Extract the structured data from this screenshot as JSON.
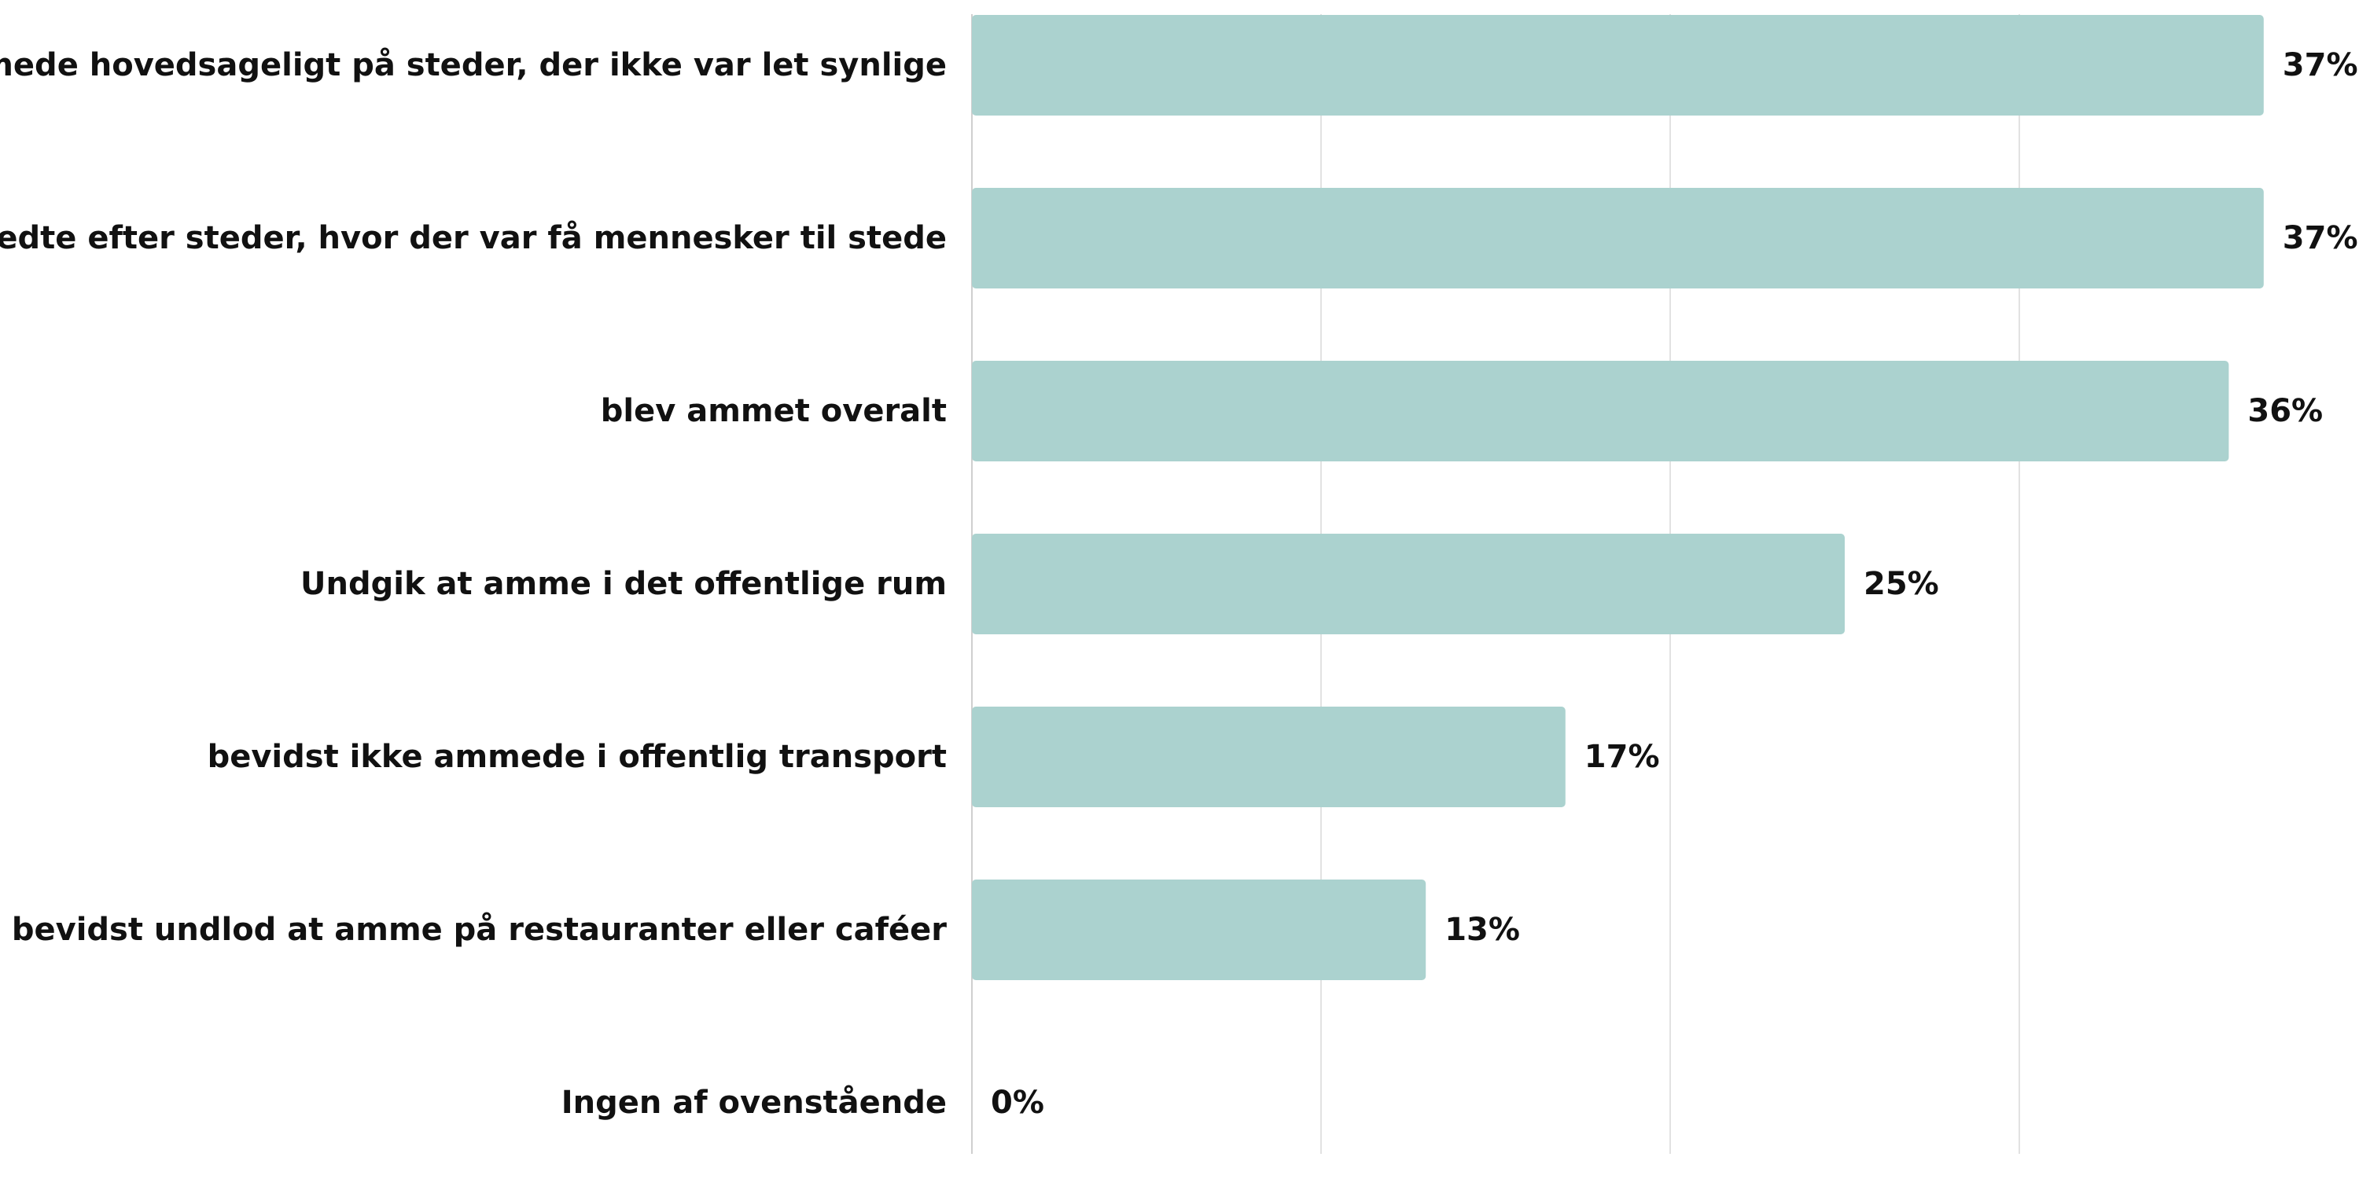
{
  "chart_data": {
    "type": "bar",
    "orientation": "horizontal",
    "categories": [
      "ammede hovedsageligt på steder, der ikke var let synlige",
      "ledte efter steder, hvor der var få mennesker til stede",
      "blev ammet overalt",
      "Undgik at amme i det offentlige rum",
      "bevidst ikke ammede i offentlig transport",
      "bevidst undlod at amme på restauranter eller caféer",
      "Ingen af ovenstående"
    ],
    "values": [
      37,
      37,
      36,
      25,
      17,
      13,
      0
    ],
    "value_labels": [
      "37%",
      "37%",
      "36%",
      "25%",
      "17%",
      "13%",
      "0%"
    ],
    "xlim": [
      0,
      40
    ],
    "grid": true,
    "legend": "none",
    "colors": {
      "bar": "#abd2cf",
      "text": "#111111",
      "grid": "#e2e2e2"
    }
  }
}
